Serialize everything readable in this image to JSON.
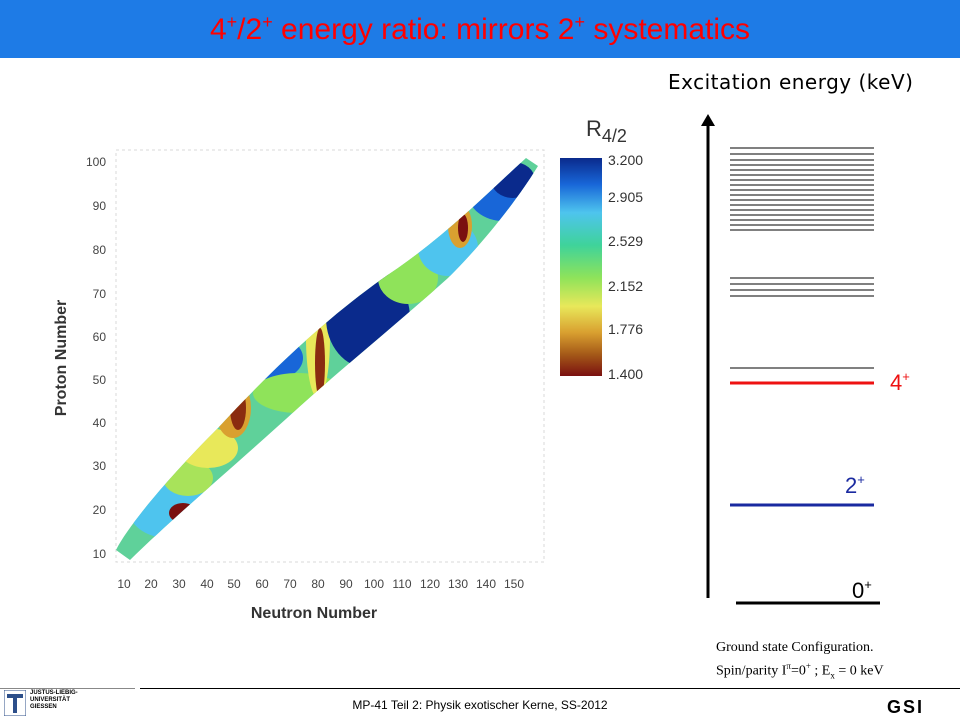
{
  "slide": {
    "title_main": "4",
    "title_sup1": "+",
    "title_mid": "/2",
    "title_sup2": "+",
    "title_rest": " energy ratio: mirrors 2",
    "title_sup3": "+",
    "title_end": " systematics"
  },
  "plot": {
    "colorbar_label": "R",
    "colorbar_label_sub": "4/2",
    "colorbar_ticks": [
      "3.200",
      "2.905",
      "2.529",
      "2.152",
      "1.776",
      "1.400"
    ],
    "xlabel": "Neutron Number",
    "ylabel": "Proton Number",
    "x_ticks": [
      "10",
      "20",
      "30",
      "40",
      "50",
      "60",
      "70",
      "80",
      "90",
      "100",
      "110",
      "120",
      "130",
      "140",
      "150"
    ],
    "y_ticks": [
      "100",
      "90",
      "80",
      "70",
      "60",
      "50",
      "40",
      "30",
      "20",
      "10"
    ]
  },
  "levels": {
    "axis_label": "Excitation energy (keV)",
    "label_4": "4",
    "label_4_sup": "+",
    "label_2": "2",
    "label_2_sup": "+",
    "label_0": "0",
    "label_0_sup": "+",
    "color_4": "#ee1111",
    "color_2": "#1a2aa0"
  },
  "ground_state": {
    "line1": "Ground state Configuration.",
    "line2": "Spin/parity I",
    "line2_sup": "π",
    "line2_b": "=0",
    "line2_sup2": "+",
    "line2_c": " ; E",
    "line2_sub": "x",
    "line2_d": " = 0 keV"
  },
  "footer": {
    "text": "MP-41 Teil 2: Physik exotischer Kerne, SS-2012",
    "logo_left_line1": "JUSTUS-LIEBIG-",
    "logo_left_line2": "UNIVERSITÄT",
    "logo_left_line3": "GIESSEN",
    "logo_right": "GSI"
  }
}
